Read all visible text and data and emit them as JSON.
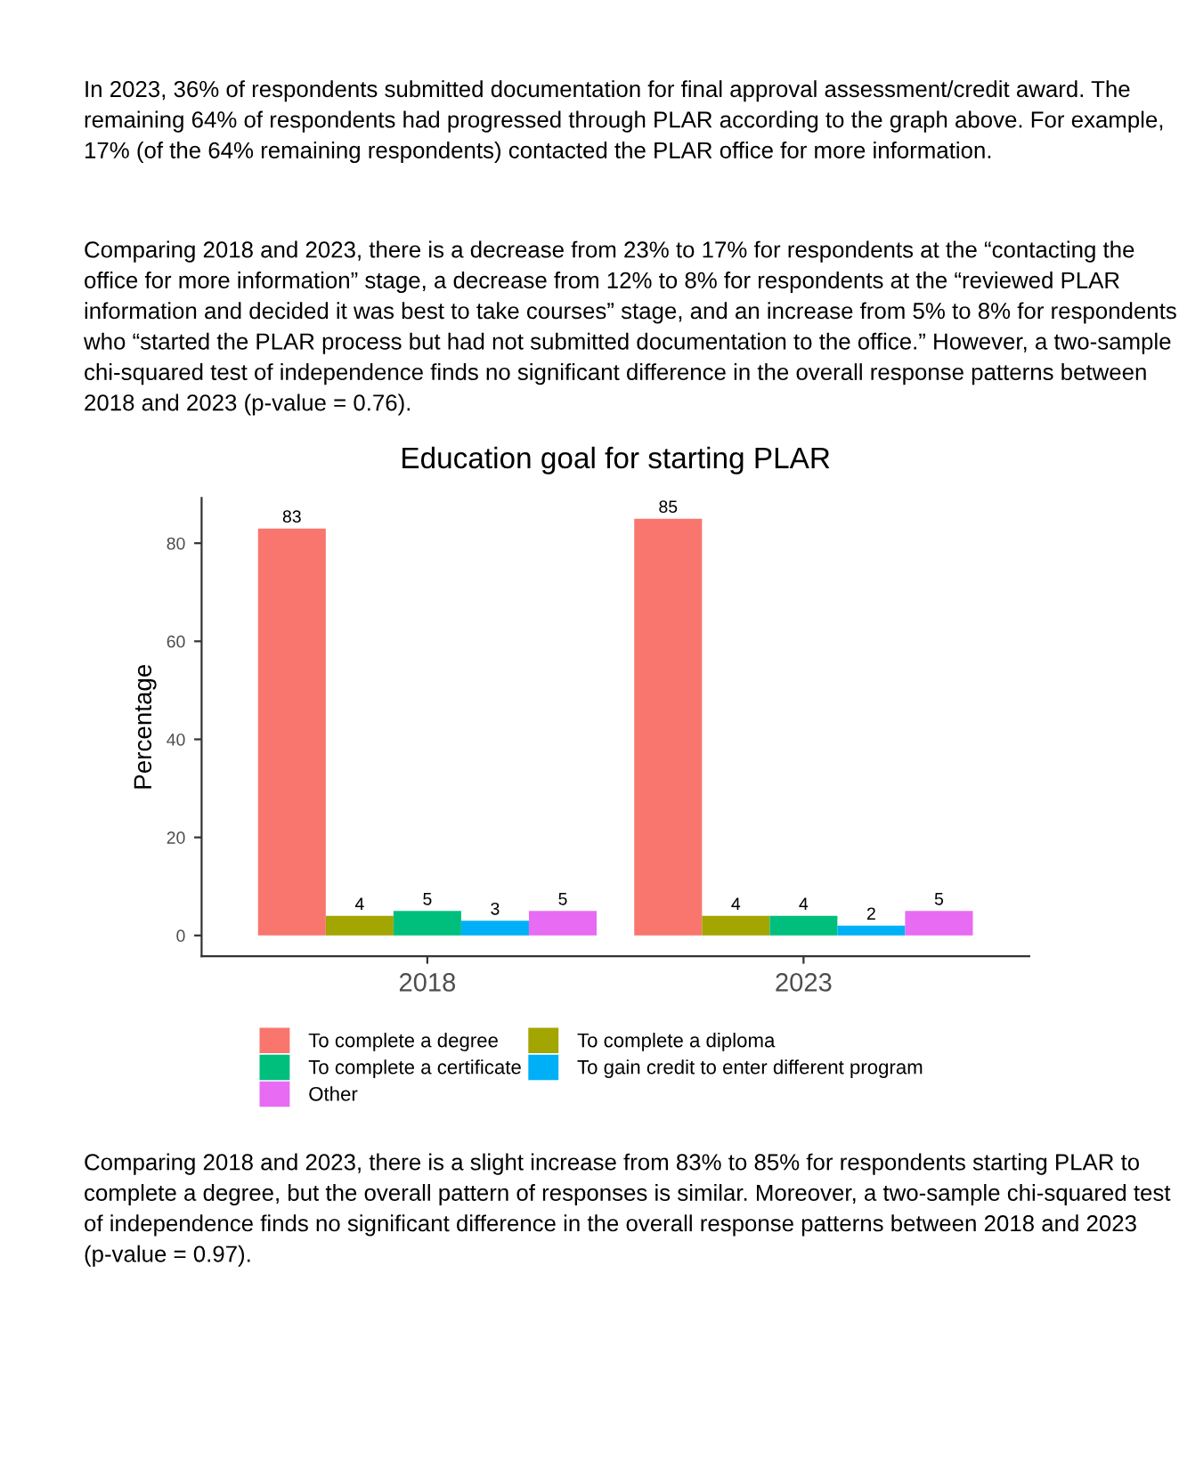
{
  "chart_data": {
    "type": "bar",
    "title": "Education goal for starting PLAR",
    "ylabel": "Percentage",
    "categories": [
      "2018",
      "2023"
    ],
    "series": [
      {
        "name": "To complete a degree",
        "color": "#f8766d",
        "values": [
          83,
          85
        ]
      },
      {
        "name": "To complete a diploma",
        "color": "#a3a500",
        "values": [
          4,
          4
        ]
      },
      {
        "name": "To complete a certificate",
        "color": "#00bf7d",
        "values": [
          5,
          4
        ]
      },
      {
        "name": "To gain credit to enter different program",
        "color": "#00b0f6",
        "values": [
          3,
          2
        ]
      },
      {
        "name": "Other",
        "color": "#e76bf3",
        "values": [
          5,
          5
        ]
      }
    ],
    "ylim": [
      -4.25,
      89.25
    ],
    "yticks": [
      0,
      20,
      40,
      60,
      80
    ],
    "data_labels": true,
    "legend": "bottom",
    "grid": false,
    "annotations": [
      "In 2023, 36% of respondents submitted documentation for final approval assessment/credit award. The remaining 64% of respondents had progressed through PLAR according to the graph above. For example, 17% (of the 64% remaining respondents) contacted the PLAR office for more information.",
      "Comparing 2018 and 2023, there is a decrease from 23% to 17% for respondents at the “contacting the office for more information” stage, a decrease from 12% to 8% for respondents at the “reviewed PLAR information and decided it was best to take courses” stage, and an increase from 5% to 8% for respondents who “started the PLAR process but had not submitted documentation to the office.” However, a two-sample chi-squared test of independence finds no significant difference in the overall response patterns between 2018 and 2023 (p-value = 0.76).",
      "Comparing 2018 and 2023, there is a slight increase from 83% to 85% for respondents starting PLAR to complete a degree, but the overall pattern of responses is similar. Moreover, a two-sample chi-squared test of independence finds no significant difference in the overall response patterns between 2018 and 2023 (p-value = 0.97)."
    ]
  }
}
